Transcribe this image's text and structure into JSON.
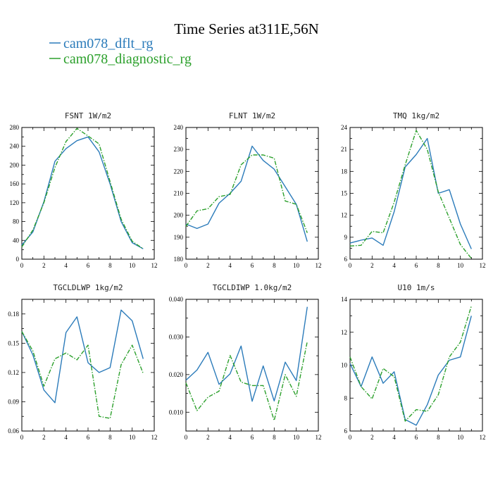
{
  "title": "Time Series at311E,56N",
  "legend": [
    {
      "label": "cam078_dflt_rg",
      "color": "#2b7bba",
      "dash": "solid"
    },
    {
      "label": "cam078_diagnostic_rg",
      "color": "#2ca02c",
      "dash": "dash-dot"
    }
  ],
  "chart_data": [
    {
      "type": "line",
      "title": "FSNT   1W/m2",
      "x": [
        0,
        1,
        2,
        3,
        4,
        5,
        6,
        7,
        8,
        9,
        10,
        11
      ],
      "xlim": [
        0,
        12
      ],
      "xticks": [
        0,
        2,
        4,
        6,
        8,
        10,
        12
      ],
      "ylim": [
        0,
        280
      ],
      "yticks": [
        0,
        40,
        80,
        120,
        160,
        200,
        240,
        280
      ],
      "ytick_labels": [
        "0",
        "40",
        "80",
        "120",
        "160",
        "200",
        "240",
        "280"
      ],
      "series": [
        {
          "name": "cam078_dflt_rg",
          "values": [
            30,
            58,
            122,
            208,
            235,
            252,
            260,
            228,
            160,
            80,
            35,
            22
          ]
        },
        {
          "name": "cam078_diagnostic_rg",
          "values": [
            26,
            62,
            120,
            195,
            250,
            278,
            262,
            245,
            165,
            85,
            38,
            22
          ]
        }
      ]
    },
    {
      "type": "line",
      "title": "FLNT   1W/m2",
      "x": [
        0,
        1,
        2,
        3,
        4,
        5,
        6,
        7,
        8,
        9,
        10,
        11
      ],
      "xlim": [
        0,
        12
      ],
      "xticks": [
        0,
        2,
        4,
        6,
        8,
        10,
        12
      ],
      "ylim": [
        180,
        240
      ],
      "yticks": [
        180,
        190,
        200,
        210,
        220,
        230,
        240
      ],
      "ytick_labels": [
        "180",
        "190",
        "200",
        "210",
        "220",
        "230",
        "240"
      ],
      "series": [
        {
          "name": "cam078_dflt_rg",
          "values": [
            196,
            194,
            196,
            205.5,
            210,
            215.5,
            231.5,
            225,
            221,
            213,
            205,
            188
          ]
        },
        {
          "name": "cam078_diagnostic_rg",
          "values": [
            195,
            202,
            203,
            208.5,
            209.5,
            223,
            227.5,
            227.5,
            226,
            206.5,
            205,
            192
          ]
        }
      ]
    },
    {
      "type": "line",
      "title": "TMQ   1kg/m2",
      "x": [
        0,
        1,
        2,
        3,
        4,
        5,
        6,
        7,
        8,
        9,
        10,
        11
      ],
      "xlim": [
        0,
        12
      ],
      "xticks": [
        0,
        2,
        4,
        6,
        8,
        10,
        12
      ],
      "ylim": [
        6,
        24
      ],
      "yticks": [
        6,
        9,
        12,
        15,
        18,
        21,
        24
      ],
      "ytick_labels": [
        "6",
        "9",
        "12",
        "15",
        "18",
        "21",
        "24"
      ],
      "series": [
        {
          "name": "cam078_dflt_rg",
          "values": [
            8.2,
            8.6,
            8.9,
            7.9,
            12.5,
            18.6,
            20.3,
            22.5,
            15.0,
            15.5,
            10.8,
            7.4
          ]
        },
        {
          "name": "cam078_diagnostic_rg",
          "values": [
            7.8,
            7.9,
            9.8,
            9.6,
            13.8,
            18.9,
            23.6,
            21.0,
            15.2,
            11.6,
            8.0,
            6.1
          ]
        }
      ]
    },
    {
      "type": "line",
      "title": "TGCLDLWP   1kg/m2",
      "x": [
        0,
        1,
        2,
        3,
        4,
        5,
        6,
        7,
        8,
        9,
        10,
        11
      ],
      "xlim": [
        0,
        12
      ],
      "xticks": [
        0,
        2,
        4,
        6,
        8,
        10,
        12
      ],
      "ylim": [
        0.06,
        0.195
      ],
      "yticks": [
        0.06,
        0.09,
        0.12,
        0.15,
        0.18
      ],
      "ytick_labels": [
        "0.06",
        "0.09",
        "0.12",
        "0.15",
        "0.18"
      ],
      "series": [
        {
          "name": "cam078_dflt_rg",
          "values": [
            0.162,
            0.138,
            0.102,
            0.089,
            0.161,
            0.177,
            0.13,
            0.12,
            0.125,
            0.184,
            0.173,
            0.134
          ]
        },
        {
          "name": "cam078_diagnostic_rg",
          "values": [
            0.162,
            0.142,
            0.106,
            0.134,
            0.14,
            0.133,
            0.148,
            0.075,
            0.073,
            0.128,
            0.148,
            0.119
          ]
        }
      ]
    },
    {
      "type": "line",
      "title": "TGCLDIWP   1.0kg/m2",
      "x": [
        0,
        1,
        2,
        3,
        4,
        5,
        6,
        7,
        8,
        9,
        10,
        11
      ],
      "xlim": [
        0,
        12
      ],
      "xticks": [
        0,
        2,
        4,
        6,
        8,
        10,
        12
      ],
      "ylim": [
        0.005,
        0.04
      ],
      "yticks": [
        0.01,
        0.02,
        0.03,
        0.04
      ],
      "ytick_labels": [
        "0.010",
        "0.020",
        "0.030",
        "0.040"
      ],
      "series": [
        {
          "name": "cam078_dflt_rg",
          "values": [
            0.0185,
            0.0212,
            0.0259,
            0.0174,
            0.0202,
            0.0276,
            0.0129,
            0.0223,
            0.013,
            0.0233,
            0.0184,
            0.038
          ]
        },
        {
          "name": "cam078_diagnostic_rg",
          "values": [
            0.0178,
            0.0104,
            0.014,
            0.0156,
            0.0251,
            0.018,
            0.0171,
            0.0171,
            0.0078,
            0.02,
            0.0142,
            0.0288
          ]
        }
      ]
    },
    {
      "type": "line",
      "title": "U10   1m/s",
      "x": [
        0,
        1,
        2,
        3,
        4,
        5,
        6,
        7,
        8,
        9,
        10,
        11
      ],
      "xlim": [
        0,
        12
      ],
      "xticks": [
        0,
        2,
        4,
        6,
        8,
        10,
        12
      ],
      "ylim": [
        6,
        14
      ],
      "yticks": [
        6,
        8,
        10,
        12,
        14
      ],
      "ytick_labels": [
        "6",
        "8",
        "10",
        "12",
        "14"
      ],
      "series": [
        {
          "name": "cam078_dflt_rg",
          "values": [
            10.1,
            8.7,
            10.5,
            8.9,
            9.6,
            6.7,
            6.35,
            7.6,
            9.4,
            10.3,
            10.5,
            13.0
          ]
        },
        {
          "name": "cam078_diagnostic_rg",
          "values": [
            10.5,
            8.7,
            7.95,
            9.8,
            9.3,
            6.6,
            7.3,
            7.2,
            8.2,
            10.5,
            11.4,
            13.6
          ]
        }
      ]
    }
  ]
}
